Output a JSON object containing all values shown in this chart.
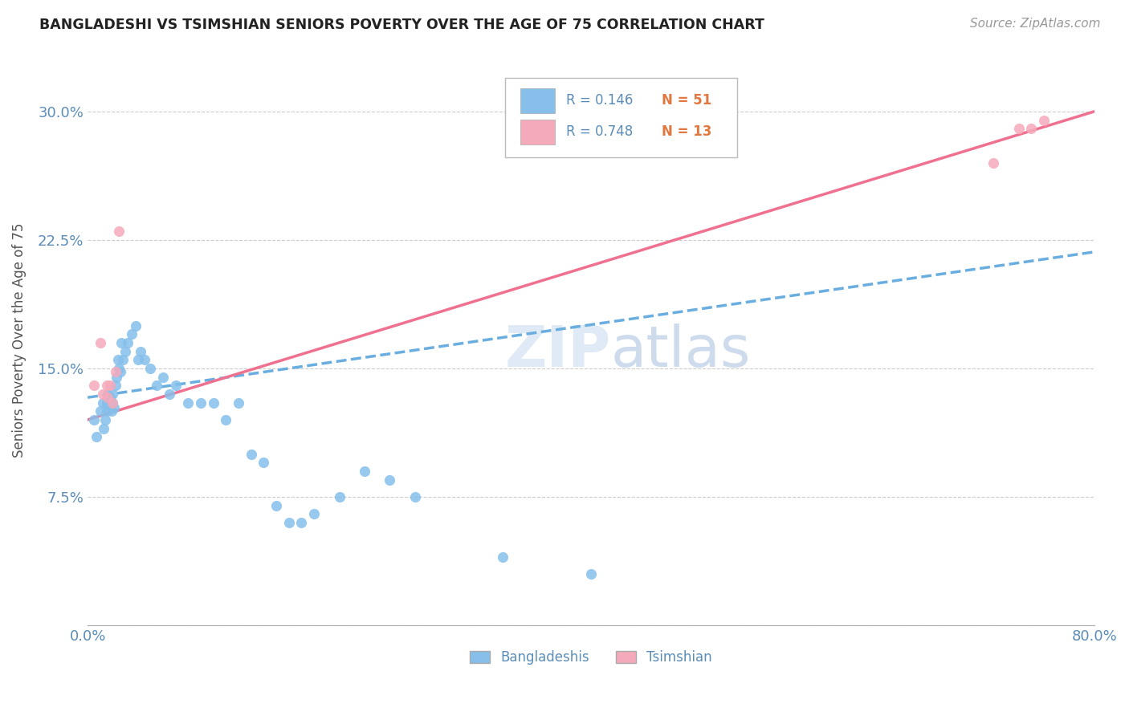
{
  "title": "BANGLADESHI VS TSIMSHIAN SENIORS POVERTY OVER THE AGE OF 75 CORRELATION CHART",
  "source": "Source: ZipAtlas.com",
  "ylabel": "Seniors Poverty Over the Age of 75",
  "xlim": [
    0.0,
    0.8
  ],
  "ylim": [
    0.0,
    0.333
  ],
  "yticks": [
    0.0,
    0.075,
    0.15,
    0.225,
    0.3
  ],
  "ytick_labels": [
    "",
    "7.5%",
    "15.0%",
    "22.5%",
    "30.0%"
  ],
  "xtick_vals": [
    0.0,
    0.8
  ],
  "xtick_labels": [
    "0.0%",
    "80.0%"
  ],
  "legend_r1": "R = 0.146",
  "legend_n1": "N = 51",
  "legend_r2": "R = 0.748",
  "legend_n2": "N = 13",
  "color_bangladeshi": "#85BFEA",
  "color_tsimshian": "#F5AABB",
  "color_line_bangladeshi": "#6AAEE0",
  "color_line_tsimshian": "#F07090",
  "color_axis_text": "#5B8DB8",
  "color_n": "#E07840",
  "bangladeshi_x": [
    0.005,
    0.007,
    0.01,
    0.012,
    0.013,
    0.014,
    0.015,
    0.015,
    0.016,
    0.017,
    0.018,
    0.019,
    0.02,
    0.02,
    0.021,
    0.022,
    0.023,
    0.024,
    0.025,
    0.026,
    0.027,
    0.028,
    0.03,
    0.032,
    0.035,
    0.038,
    0.04,
    0.042,
    0.045,
    0.05,
    0.055,
    0.06,
    0.065,
    0.07,
    0.08,
    0.09,
    0.1,
    0.11,
    0.12,
    0.13,
    0.14,
    0.15,
    0.16,
    0.17,
    0.18,
    0.2,
    0.22,
    0.24,
    0.26,
    0.33,
    0.4
  ],
  "bangladeshi_y": [
    0.12,
    0.11,
    0.125,
    0.13,
    0.115,
    0.12,
    0.125,
    0.13,
    0.135,
    0.128,
    0.133,
    0.125,
    0.13,
    0.135,
    0.127,
    0.14,
    0.145,
    0.155,
    0.15,
    0.148,
    0.165,
    0.155,
    0.16,
    0.165,
    0.17,
    0.175,
    0.155,
    0.16,
    0.155,
    0.15,
    0.14,
    0.145,
    0.135,
    0.14,
    0.13,
    0.13,
    0.13,
    0.12,
    0.13,
    0.1,
    0.095,
    0.07,
    0.06,
    0.06,
    0.065,
    0.075,
    0.09,
    0.085,
    0.075,
    0.04,
    0.03
  ],
  "tsimshian_x": [
    0.005,
    0.01,
    0.012,
    0.015,
    0.016,
    0.018,
    0.02,
    0.022,
    0.025,
    0.72,
    0.74,
    0.75,
    0.76
  ],
  "tsimshian_y": [
    0.14,
    0.165,
    0.135,
    0.14,
    0.133,
    0.14,
    0.13,
    0.148,
    0.23,
    0.27,
    0.29,
    0.29,
    0.295
  ],
  "line_b_x0": 0.0,
  "line_b_y0": 0.133,
  "line_b_x1": 0.8,
  "line_b_y1": 0.218,
  "line_t_x0": 0.0,
  "line_t_y0": 0.12,
  "line_t_x1": 0.8,
  "line_t_y1": 0.3
}
